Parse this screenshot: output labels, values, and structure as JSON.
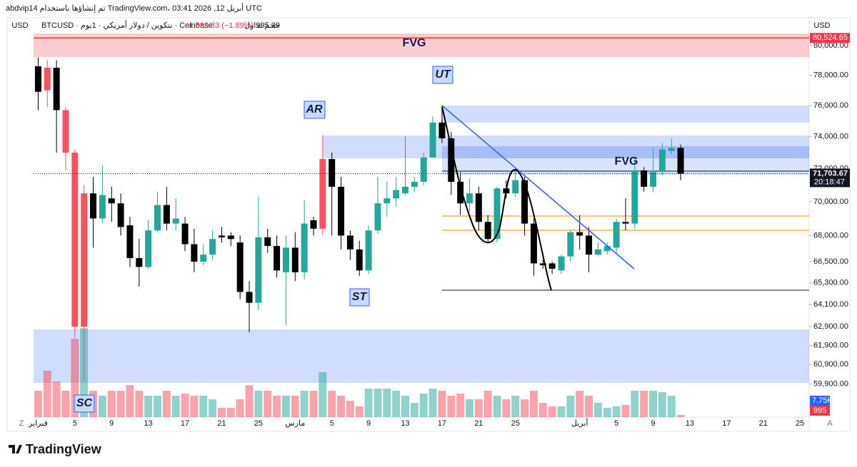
{
  "header": {
    "attribution": "abdvip14 تم إنشاؤها باستخدام TradingView.com، أبريل 12, 2026 03:41 UTC",
    "currency_left": "USD",
    "symbol": "BTCUSD · بتكوين / دولار أمريكي · 1يوم · Coinbase",
    "change": "−1,382.33 (−1.89%)",
    "volume_label": "حجم تداول",
    "volume_value": "995.39",
    "currency_right": "USD",
    "logo": "TradingView"
  },
  "chart_data": {
    "type": "candlestick",
    "categories": [
      "فبراير",
      null,
      null,
      null,
      "5",
      null,
      null,
      null,
      "9",
      null,
      null,
      null,
      "13",
      null,
      null,
      null,
      "17",
      null,
      null,
      null,
      "21",
      null,
      null,
      null,
      "25",
      null,
      null,
      null,
      "مارس",
      null,
      null,
      null,
      "5",
      null,
      null,
      null,
      "9",
      null,
      null,
      null,
      "13",
      null,
      null,
      null,
      "17",
      null,
      null,
      null,
      "21",
      null,
      null,
      null,
      "25",
      null,
      null,
      null,
      null,
      null,
      null,
      "أبريل",
      null,
      null,
      null,
      "5",
      null,
      null,
      null,
      "9",
      null,
      null,
      null,
      "13",
      null,
      null,
      null,
      "17",
      null,
      null,
      null,
      "21",
      null,
      null,
      null,
      "25"
    ],
    "open": [
      78600,
      78500,
      78500,
      75700,
      73000,
      62900,
      70500,
      69000,
      70200,
      69900,
      68600,
      66700,
      66200,
      68300,
      69800,
      68700,
      68700,
      67500,
      66500,
      66900,
      68000,
      68000,
      67600,
      64800,
      64200,
      67900,
      67400,
      65900,
      67300,
      65900,
      68900,
      68400,
      72600,
      70900,
      68000,
      67200,
      66000,
      68300,
      69900,
      70200,
      70500,
      70900,
      71200,
      72700,
      74900,
      73900,
      71200,
      69900,
      70500,
      68800,
      67800,
      70800,
      70500,
      71300,
      68700,
      66400,
      66400,
      66000,
      66800,
      68200,
      68000,
      66900,
      67100,
      67300,
      68800,
      68700,
      71900,
      70900,
      71800,
      73100,
      73300,
      null,
      null,
      null,
      null,
      null,
      null,
      null,
      null,
      null,
      null,
      null,
      null,
      null
    ],
    "high": [
      79200,
      79000,
      79000,
      75900,
      73200,
      71000,
      71500,
      72200,
      70900,
      70500,
      69100,
      67800,
      68900,
      70600,
      70900,
      70200,
      69100,
      68400,
      67500,
      68300,
      68500,
      68200,
      68000,
      65400,
      70300,
      68400,
      68000,
      68000,
      68200,
      70100,
      69100,
      74100,
      73000,
      71500,
      68300,
      67700,
      68600,
      71500,
      71200,
      71500,
      74000,
      71500,
      73000,
      75300,
      76000,
      74300,
      71800,
      71400,
      70900,
      69200,
      70900,
      71300,
      71800,
      71500,
      69000,
      66600,
      66500,
      66900,
      68300,
      69200,
      68500,
      67600,
      67600,
      69000,
      70200,
      72700,
      72100,
      73300,
      73600,
      73900,
      73500,
      null,
      null,
      null,
      null,
      null,
      null,
      null,
      null,
      null,
      null,
      null,
      null,
      null
    ],
    "low": [
      75700,
      75900,
      73000,
      71900,
      62300,
      60100,
      67300,
      68700,
      68800,
      68000,
      66200,
      65100,
      66100,
      68200,
      68300,
      68300,
      67100,
      65900,
      66300,
      66600,
      67600,
      67400,
      64400,
      62600,
      63800,
      67000,
      65600,
      63000,
      65400,
      65500,
      68000,
      68000,
      68000,
      67200,
      66600,
      65700,
      65800,
      68100,
      69100,
      69700,
      70400,
      70600,
      71000,
      72700,
      73600,
      70400,
      69200,
      69400,
      68300,
      67600,
      67600,
      70200,
      70300,
      68000,
      65700,
      66100,
      65800,
      65800,
      66500,
      67200,
      65900,
      66800,
      66900,
      67000,
      68300,
      68400,
      70600,
      70600,
      71600,
      72900,
      71300,
      null,
      null,
      null,
      null,
      null,
      null,
      null,
      null,
      null,
      null,
      null,
      null,
      null
    ],
    "close": [
      76900,
      77000,
      75700,
      73000,
      62900,
      70500,
      69000,
      70400,
      69900,
      68500,
      66700,
      66200,
      68300,
      69800,
      68700,
      69000,
      67500,
      66500,
      66900,
      67800,
      67900,
      67800,
      64800,
      64200,
      67900,
      67400,
      66000,
      67300,
      65900,
      68700,
      68400,
      72600,
      70900,
      68000,
      67200,
      66000,
      68300,
      69900,
      70200,
      70700,
      70900,
      71200,
      72700,
      74900,
      73900,
      71200,
      69900,
      70500,
      68800,
      67800,
      70800,
      70500,
      71300,
      68700,
      66400,
      66300,
      66100,
      66800,
      68200,
      68000,
      66900,
      67200,
      67400,
      68800,
      68700,
      71900,
      70900,
      71800,
      73200,
      73300,
      71700,
      null,
      null,
      null,
      null,
      null,
      null,
      null,
      null,
      null,
      null,
      null,
      null,
      null
    ],
    "colors": [
      "#000000",
      "#f7525f",
      "#000000",
      "#f7525f",
      "#f7525f",
      "#f7525f",
      "#000000",
      "#26a69a",
      "#000000",
      "#000000",
      "#000000",
      "#000000",
      "#26a69a",
      "#26a69a",
      "#000000",
      "#26a69a",
      "#000000",
      "#000000",
      "#26a69a",
      "#26a69a",
      "#000000",
      "#000000",
      "#000000",
      "#000000",
      "#26a69a",
      "#000000",
      "#000000",
      "#26a69a",
      "#000000",
      "#26a69a",
      "#000000",
      "#f7525f",
      "#000000",
      "#000000",
      "#000000",
      "#000000",
      "#26a69a",
      "#26a69a",
      "#26a69a",
      "#26a69a",
      "#26a69a",
      "#26a69a",
      "#26a69a",
      "#26a69a",
      "#000000",
      "#000000",
      "#000000",
      "#26a69a",
      "#000000",
      "#000000",
      "#26a69a",
      "#000000",
      "#26a69a",
      "#000000",
      "#000000",
      "#000000",
      "#000000",
      "#26a69a",
      "#26a69a",
      "#000000",
      "#000000",
      "#26a69a",
      "#26a69a",
      "#26a69a",
      "#000000",
      "#26a69a",
      "#000000",
      "#26a69a",
      "#26a69a",
      "#26a69a",
      "#000000",
      null,
      null,
      null,
      null,
      null,
      null,
      null,
      null,
      null,
      null,
      null,
      null,
      null
    ],
    "volume": [
      12460,
      21890,
      16840,
      12460,
      37040,
      42090,
      12460,
      10100,
      12460,
      12460,
      15150,
      12460,
      10100,
      10100,
      12460,
      10100,
      11110,
      10100,
      10100,
      8420,
      4380,
      4380,
      8420,
      15150,
      12460,
      12460,
      10100,
      10100,
      10100,
      12460,
      12460,
      21210,
      12460,
      10100,
      7740,
      5050,
      13470,
      13470,
      13470,
      12460,
      10100,
      6730,
      11110,
      13470,
      12460,
      10100,
      11110,
      8420,
      8420,
      12460,
      10100,
      8420,
      10100,
      8420,
      12460,
      6730,
      5050,
      5050,
      10100,
      12460,
      10100,
      6730,
      4380,
      5050,
      5720,
      12460,
      12460,
      12460,
      11780,
      10100,
      995,
      null,
      null,
      null,
      null,
      null,
      null,
      null,
      null,
      null,
      null,
      null,
      null,
      null
    ],
    "vlim": [
      0,
      182000
    ],
    "up_volume_color": "rgba(38,166,154,0.5)",
    "down_volume_color": "rgba(242,54,69,0.45)",
    "ylim": [
      58220,
      80930
    ],
    "log_scale": true,
    "grid": false,
    "yticks": [
      {
        "value": 80000,
        "label": "80,000.00"
      },
      {
        "value": 78000,
        "label": "78,000.00"
      },
      {
        "value": 76000,
        "label": "76,000.00"
      },
      {
        "value": 74000,
        "label": "74,000.00"
      },
      {
        "value": 72000,
        "label": "72,000.00"
      },
      {
        "value": 70000,
        "label": "70,000.00"
      },
      {
        "value": 68000,
        "label": "68,000.00"
      },
      {
        "value": 66500,
        "label": "66,500.00"
      },
      {
        "value": 65300,
        "label": "65,300.00"
      },
      {
        "value": 64100,
        "label": "64,100.00"
      },
      {
        "value": 62900,
        "label": "62,900.00"
      },
      {
        "value": 61900,
        "label": "61,900.00"
      },
      {
        "value": 60900,
        "label": "60,900.00"
      },
      {
        "value": 59900,
        "label": "59,900.00"
      }
    ],
    "fvg_level": {
      "value": 80524.65,
      "label": "80,524.65"
    },
    "last_price": {
      "value": 71703.67,
      "label": "71,703.67"
    },
    "countdown": "20:18:47",
    "volume_ma_last": {
      "value": 7750,
      "label": "7.75K"
    },
    "volume_last": {
      "value": 995,
      "label": "995"
    },
    "annotations": [
      "FVG",
      "UT",
      "AR",
      "ST",
      "SC",
      "FVG"
    ],
    "axis_buttons": [
      "Z",
      "A"
    ]
  }
}
